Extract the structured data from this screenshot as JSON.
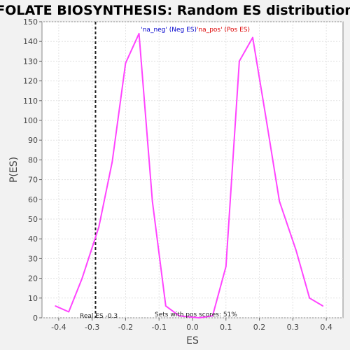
{
  "chart_data": {
    "type": "line",
    "title": "FOLATE BIOSYNTHESIS: Random ES distribution",
    "xlabel": "ES",
    "ylabel": "P(ES)",
    "xlim": [
      -0.45,
      0.45
    ],
    "ylim": [
      0,
      150
    ],
    "xticks": [
      -0.4,
      -0.3,
      -0.2,
      -0.1,
      0.0,
      0.1,
      0.2,
      0.3,
      0.4
    ],
    "xtick_labels": [
      "-0.4",
      "-0.3",
      "-0.2",
      "-0.1",
      "0.0",
      "0.1",
      "0.2",
      "0.3",
      "0.4"
    ],
    "yticks": [
      0,
      10,
      20,
      30,
      40,
      50,
      60,
      70,
      80,
      90,
      100,
      110,
      120,
      130,
      140,
      150
    ],
    "ytick_labels": [
      "0",
      "10",
      "20",
      "30",
      "40",
      "50",
      "60",
      "70",
      "80",
      "90",
      "100",
      "110",
      "120",
      "130",
      "140",
      "150"
    ],
    "grid": true,
    "series": [
      {
        "color": "#ff44ff",
        "x": [
          -0.41,
          -0.37,
          -0.33,
          -0.28,
          -0.24,
          -0.2,
          -0.16,
          -0.12,
          -0.08,
          -0.04,
          0.02,
          0.06,
          0.1,
          0.14,
          0.18,
          0.22,
          0.26,
          0.31,
          0.35,
          0.39
        ],
        "y": [
          6,
          3,
          20,
          46,
          79,
          129,
          144,
          59,
          6,
          1,
          0,
          1,
          26,
          130,
          142,
          101,
          59,
          34,
          10,
          6
        ]
      }
    ],
    "annotations": {
      "neg_label": "'na_neg' (Neg ES)",
      "pos_label": "'na_pos' (Pos ES)",
      "real_es_label": "Real ES -0.3",
      "sets_label": "Sets with pos scores: 51%",
      "real_es_value": -0.29,
      "neg_color": "#0000cc",
      "pos_color": "#dd0000"
    }
  }
}
